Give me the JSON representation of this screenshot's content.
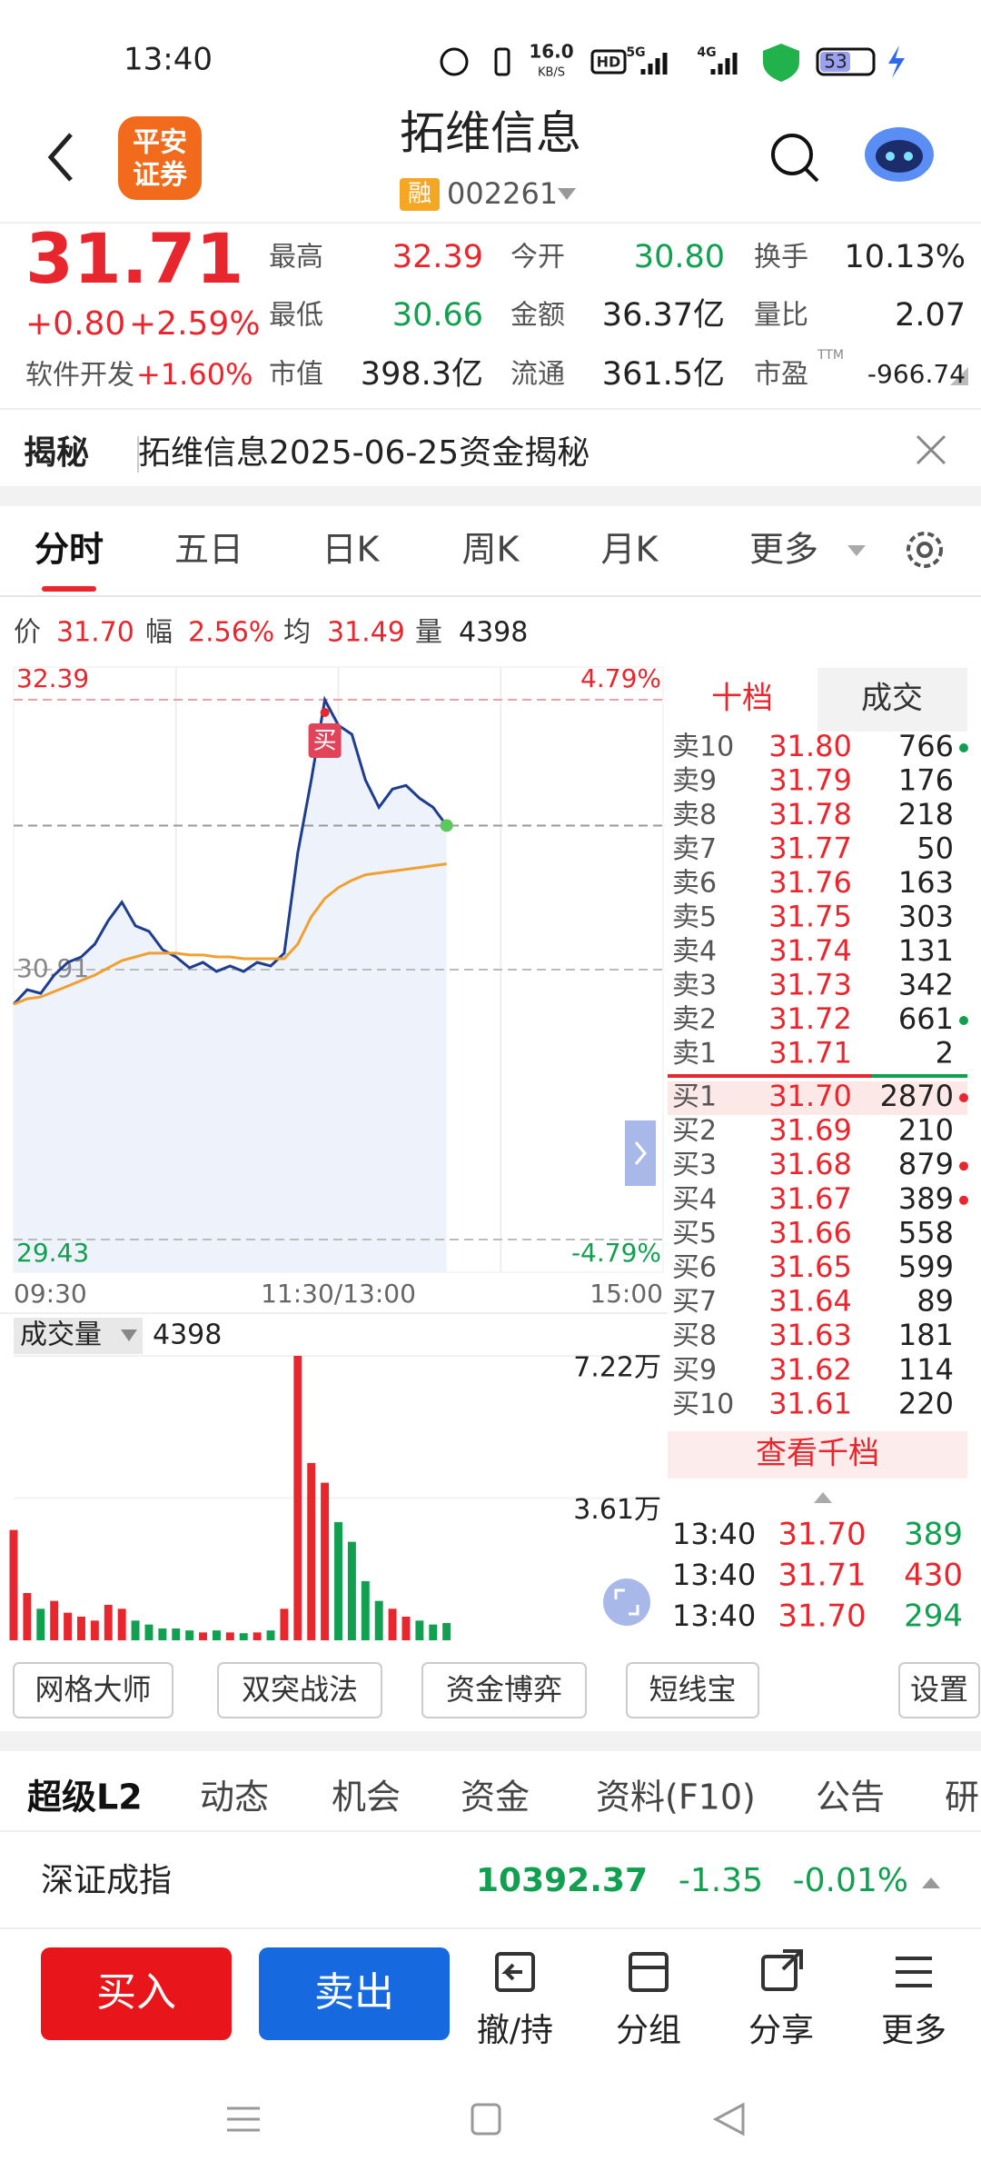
{
  "status": {
    "time": "13:40",
    "speed": "16.0",
    "speed_unit": "KB/S",
    "hd": "HD",
    "net1": "5G",
    "net2": "4G",
    "battery": "53"
  },
  "header": {
    "logo": [
      "平安",
      "证券"
    ],
    "title": "拓维信息",
    "badge": "融",
    "code": "002261"
  },
  "quote": {
    "price": "31.71",
    "change": "+0.80",
    "change_pct": "+2.59%",
    "industry": "软件开发",
    "industry_pct": "+1.60%",
    "stats": [
      [
        {
          "label": "最高",
          "value": "32.39",
          "color": "red"
        },
        {
          "label": "今开",
          "value": "30.80",
          "color": "green"
        },
        {
          "label": "换手",
          "value": "10.13%"
        }
      ],
      [
        {
          "label": "最低",
          "value": "30.66",
          "color": "green"
        },
        {
          "label": "金额",
          "value": "36.37亿"
        },
        {
          "label": "量比",
          "value": "2.07"
        }
      ],
      [
        {
          "label": "市值",
          "value": "398.3亿"
        },
        {
          "label": "流通",
          "value": "361.5亿"
        },
        {
          "label": "市盈",
          "sup": "TTM",
          "value": "-966.74"
        }
      ]
    ]
  },
  "banner": {
    "tag": "揭秘",
    "text": "拓维信息2025-06-25资金揭秘"
  },
  "tabs": [
    "分时",
    "五日",
    "日K",
    "周K",
    "月K",
    "更多"
  ],
  "chart_data": [
    {
      "type": "line",
      "info": [
        {
          "label": "价",
          "value": "31.70"
        },
        {
          "label": "幅",
          "value": "2.56%"
        },
        {
          "label": "均",
          "value": "31.49"
        },
        {
          "label": "量",
          "value": "4398"
        }
      ],
      "x": [
        "09:30",
        "09:35",
        "09:40",
        "09:45",
        "09:50",
        "09:55",
        "10:00",
        "10:05",
        "10:10",
        "10:15",
        "10:20",
        "10:25",
        "10:30",
        "10:35",
        "10:40",
        "10:45",
        "10:50",
        "10:55",
        "11:00",
        "11:05",
        "11:10",
        "11:15",
        "11:20",
        "11:25",
        "11:30",
        "13:05",
        "13:10",
        "13:15",
        "13:20",
        "13:25",
        "13:30",
        "13:35",
        "13:40"
      ],
      "series": [
        {
          "color": "#1e3d8f",
          "values": [
            30.72,
            30.8,
            30.78,
            30.88,
            30.95,
            30.98,
            31.05,
            31.18,
            31.28,
            31.15,
            31.12,
            31.02,
            30.98,
            30.92,
            30.95,
            30.9,
            30.93,
            30.9,
            30.95,
            30.93,
            31.0,
            31.55,
            31.95,
            32.39,
            32.25,
            32.2,
            31.95,
            31.8,
            31.9,
            31.92,
            31.85,
            31.8,
            31.7
          ]
        },
        {
          "color": "#f0a030",
          "values": [
            30.72,
            30.75,
            30.76,
            30.79,
            30.82,
            30.85,
            30.88,
            30.92,
            30.96,
            30.98,
            31.0,
            31.0,
            31.0,
            30.99,
            30.99,
            30.98,
            30.98,
            30.97,
            30.97,
            30.97,
            30.97,
            31.05,
            31.2,
            31.3,
            31.36,
            31.4,
            31.43,
            31.44,
            31.45,
            31.46,
            31.47,
            31.48,
            31.49
          ]
        }
      ],
      "ylim": [
        29.43,
        32.39
      ],
      "yticks": [
        32.39,
        30.91,
        29.43
      ],
      "y2lim": [
        -4.79,
        4.79
      ],
      "y2ticks": [
        {
          "value": 4.79,
          "label": "4.79%"
        },
        {
          "value": -4.79,
          "label": "-4.79%"
        }
      ],
      "xticks": [
        "09:30",
        "11:30/13:00",
        "15:00"
      ],
      "marker": "买"
    },
    {
      "type": "bar",
      "title": "成交量",
      "current": "4398",
      "x": [
        "09:30",
        "09:35",
        "09:40",
        "09:45",
        "09:50",
        "09:55",
        "10:00",
        "10:05",
        "10:10",
        "10:15",
        "10:20",
        "10:25",
        "10:30",
        "10:35",
        "10:40",
        "10:45",
        "10:50",
        "10:55",
        "11:00",
        "11:05",
        "11:10",
        "11:15",
        "11:20",
        "11:25",
        "11:30",
        "13:05",
        "13:10",
        "13:15",
        "13:20",
        "13:25",
        "13:30",
        "13:35",
        "13:40"
      ],
      "values": [
        28000,
        12000,
        8000,
        10000,
        7000,
        6000,
        5000,
        9000,
        8000,
        5000,
        4000,
        3000,
        3000,
        2500,
        2000,
        2500,
        2000,
        1800,
        2000,
        2500,
        8000,
        72200,
        45000,
        40000,
        30000,
        25000,
        15000,
        10000,
        8000,
        6000,
        5000,
        4000,
        4398
      ],
      "ylim": [
        0,
        72200
      ],
      "yticks": [
        {
          "value": 72200,
          "label": "7.22万"
        },
        {
          "value": 36100,
          "label": "3.61万"
        }
      ]
    }
  ],
  "orderbook": {
    "tabs": [
      "十档",
      "成交"
    ],
    "sell": [
      {
        "label": "卖10",
        "price": "31.80",
        "volume": "766",
        "dot": "green"
      },
      {
        "label": "卖9",
        "price": "31.79",
        "volume": "176"
      },
      {
        "label": "卖8",
        "price": "31.78",
        "volume": "218"
      },
      {
        "label": "卖7",
        "price": "31.77",
        "volume": "50"
      },
      {
        "label": "卖6",
        "price": "31.76",
        "volume": "163"
      },
      {
        "label": "卖5",
        "price": "31.75",
        "volume": "303"
      },
      {
        "label": "卖4",
        "price": "31.74",
        "volume": "131"
      },
      {
        "label": "卖3",
        "price": "31.73",
        "volume": "342"
      },
      {
        "label": "卖2",
        "price": "31.72",
        "volume": "661",
        "dot": "green"
      },
      {
        "label": "卖1",
        "price": "31.71",
        "volume": "2"
      }
    ],
    "buy": [
      {
        "label": "买1",
        "price": "31.70",
        "volume": "2870",
        "dot": "red"
      },
      {
        "label": "买2",
        "price": "31.69",
        "volume": "210"
      },
      {
        "label": "买3",
        "price": "31.68",
        "volume": "879",
        "dot": "red"
      },
      {
        "label": "买4",
        "price": "31.67",
        "volume": "389",
        "dot": "red"
      },
      {
        "label": "买5",
        "price": "31.66",
        "volume": "558"
      },
      {
        "label": "买6",
        "price": "31.65",
        "volume": "599"
      },
      {
        "label": "买7",
        "price": "31.64",
        "volume": "89"
      },
      {
        "label": "买8",
        "price": "31.63",
        "volume": "181"
      },
      {
        "label": "买9",
        "price": "31.62",
        "volume": "114"
      },
      {
        "label": "买10",
        "price": "31.61",
        "volume": "220"
      }
    ],
    "more": "查看千档",
    "trades": [
      {
        "time": "13:40",
        "price": "31.70",
        "volume": "389",
        "color": "green"
      },
      {
        "time": "13:40",
        "price": "31.71",
        "volume": "430",
        "color": "red"
      },
      {
        "time": "13:40",
        "price": "31.70",
        "volume": "294",
        "color": "green"
      }
    ]
  },
  "tools": [
    "网格大师",
    "双突战法",
    "资金博弈",
    "短线宝",
    "设置"
  ],
  "bottom_tabs": [
    "超级L2",
    "动态",
    "机会",
    "资金",
    "资料(F10)",
    "公告",
    "研"
  ],
  "index": {
    "name": "深证成指",
    "value": "10392.37",
    "change": "-1.35",
    "pct": "-0.01%"
  },
  "actions": {
    "buy": "买入",
    "sell": "卖出",
    "items": [
      "撤/持",
      "分组",
      "分享",
      "更多"
    ]
  }
}
